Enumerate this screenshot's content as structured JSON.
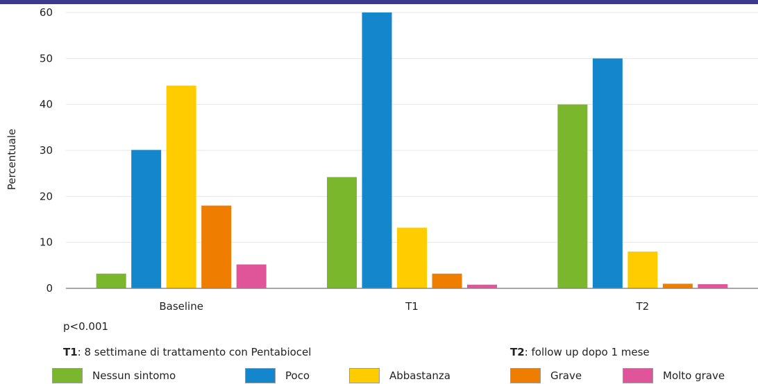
{
  "chart_data": {
    "type": "bar",
    "ylabel": "Percentuale",
    "xlabel": "",
    "ylim": [
      0,
      60
    ],
    "yticks": [
      0,
      10,
      20,
      30,
      40,
      50,
      60
    ],
    "grid": true,
    "categories": [
      "Baseline",
      "T1",
      "T2"
    ],
    "series": [
      {
        "name": "Nessun sintomo",
        "color": "#7ab72c",
        "values": [
          3.2,
          24.2,
          40.0
        ]
      },
      {
        "name": "Poco",
        "color": "#1486cc",
        "values": [
          30.1,
          60.0,
          50.0
        ]
      },
      {
        "name": "Abbastanza",
        "color": "#ffcc00",
        "values": [
          44.1,
          13.2,
          8.0
        ]
      },
      {
        "name": "Grave",
        "color": "#ee7d00",
        "values": [
          18.0,
          3.2,
          1.0
        ]
      },
      {
        "name": "Molto grave",
        "color": "#e0559a",
        "values": [
          5.2,
          0.8,
          0.9
        ]
      }
    ],
    "legend_position": "bottom"
  },
  "notes": {
    "pvalue": "p<0.001",
    "t1_key": "T1",
    "t1_text": ": 8 settimane di trattamento con Pentabiocel",
    "t2_key": "T2",
    "t2_text": ": follow up dopo 1 mese"
  },
  "colors": {
    "header_bar": "#3b3a8c",
    "grid": "#e6e6e6",
    "axis": "#888888"
  }
}
